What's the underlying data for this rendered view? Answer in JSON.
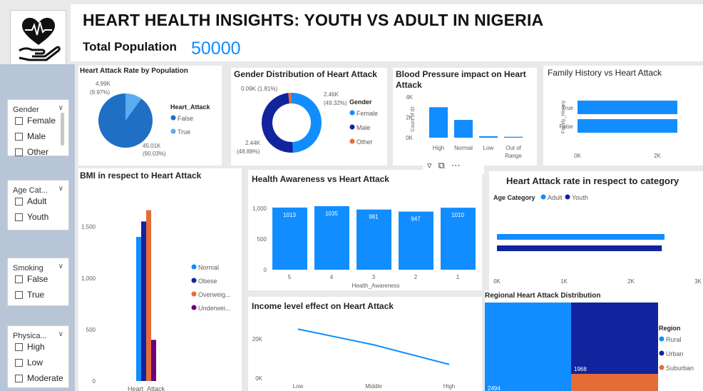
{
  "header": {
    "title": "HEART HEALTH INSIGHTS: YOUTH VS ADULT IN NIGERIA",
    "population_label": "Total Population",
    "population_value": "50000"
  },
  "logo": {
    "icon": "heart-in-hand-icon"
  },
  "slicers": [
    {
      "title": "Gender",
      "options": [
        "Female",
        "Male",
        "Other"
      ]
    },
    {
      "title": "Age Cat...",
      "options": [
        "Adult",
        "Youth"
      ]
    },
    {
      "title": "Smoking",
      "options": [
        "False",
        "True"
      ]
    },
    {
      "title": "Physica...",
      "options": [
        "High",
        "Low",
        "Moderate"
      ]
    }
  ],
  "toolbar": {
    "filter_icon": "filter-icon",
    "focus_icon": "focus-mode-icon",
    "more_icon": "more-options-icon"
  },
  "colors": {
    "blue": "#118dff",
    "darkblue": "#12239e",
    "orange": "#e66c37",
    "purple": "#6b007b",
    "lightblue": "#4ba4ff"
  },
  "chart_data": [
    {
      "id": "pie",
      "type": "pie",
      "title": "Heart Attack Rate by Population",
      "legend_title": "Heart_Attack",
      "slices": [
        {
          "name": "False",
          "value": 45010,
          "label": "45.01K",
          "pct": "(90.03%)"
        },
        {
          "name": "True",
          "value": 4990,
          "label": "4.99K",
          "pct": "(9.97%)"
        }
      ]
    },
    {
      "id": "donut",
      "type": "pie",
      "title": "Gender Distribution of Heart Attack",
      "legend_title": "Gender",
      "slices": [
        {
          "name": "Female",
          "value": 2460,
          "label": "2.46K",
          "pct": "(49.32%)"
        },
        {
          "name": "Male",
          "value": 2440,
          "label": "2.44K",
          "pct": "(48.88%)"
        },
        {
          "name": "Other",
          "value": 90,
          "label": "0.09K",
          "pct": "(1.81%)"
        }
      ]
    },
    {
      "id": "bp",
      "type": "bar",
      "title": "Blood Pressure impact on Heart Attack",
      "ylabel": "Count of ID",
      "categories": [
        "High",
        "Normal",
        "Low",
        "Out of Range"
      ],
      "values": [
        3000,
        1750,
        150,
        90
      ],
      "ylim": [
        0,
        4000
      ],
      "yticks": [
        "0K",
        "2K",
        "4K"
      ]
    },
    {
      "id": "fh",
      "type": "bar",
      "title": "Family History vs Heart Attack",
      "ylabel": "Family_History",
      "categories": [
        "True",
        "False"
      ],
      "values": [
        2500,
        2500
      ],
      "xlim": [
        0,
        2500
      ],
      "xticks": [
        "0K",
        "2K"
      ]
    },
    {
      "id": "bmi",
      "type": "bar",
      "title": "BMI in respect to Heart Attack",
      "categories": [
        "Heart_Attack"
      ],
      "series": [
        {
          "name": "Normal",
          "value": 1400
        },
        {
          "name": "Obese",
          "value": 1550
        },
        {
          "name": "Overweig...",
          "value": 1660
        },
        {
          "name": "Underwei...",
          "value": 400
        }
      ],
      "ylim": [
        0,
        1700
      ],
      "yticks": [
        "0",
        "500",
        "1,000",
        "1,500"
      ]
    },
    {
      "id": "ha",
      "type": "bar",
      "title": "Health Awareness vs Heart Attack",
      "xlabel": "Health_Awareness",
      "categories": [
        "5",
        "4",
        "3",
        "2",
        "1"
      ],
      "values": [
        1013,
        1035,
        981,
        947,
        1010
      ],
      "ylim": [
        0,
        1100
      ],
      "yticks": [
        "0",
        "500",
        "1,000"
      ]
    },
    {
      "id": "age",
      "type": "bar",
      "title": "Heart Attack rate in respect to category",
      "legend_title": "Age Category",
      "series": [
        {
          "name": "Adult",
          "value": 2500
        },
        {
          "name": "Youth",
          "value": 2460
        }
      ],
      "xlim": [
        0,
        3000
      ],
      "xticks": [
        "0K",
        "1K",
        "2K",
        "3K"
      ]
    },
    {
      "id": "income",
      "type": "line",
      "title": "Income level effect on Heart Attack",
      "categories": [
        "Low",
        "Middle",
        "High"
      ],
      "values": [
        25000,
        17000,
        7000
      ],
      "ylim": [
        0,
        30000
      ],
      "yticks": [
        "0K",
        "20K"
      ]
    },
    {
      "id": "region",
      "type": "heatmap",
      "title": "Regional Heart Attack Distribution",
      "legend_title": "Region",
      "items": [
        {
          "name": "Rural",
          "value": 2494,
          "label": "2494"
        },
        {
          "name": "Urban",
          "value": 1968,
          "label": "1968"
        },
        {
          "name": "Suburban",
          "value": 530,
          "label": ""
        }
      ]
    }
  ]
}
